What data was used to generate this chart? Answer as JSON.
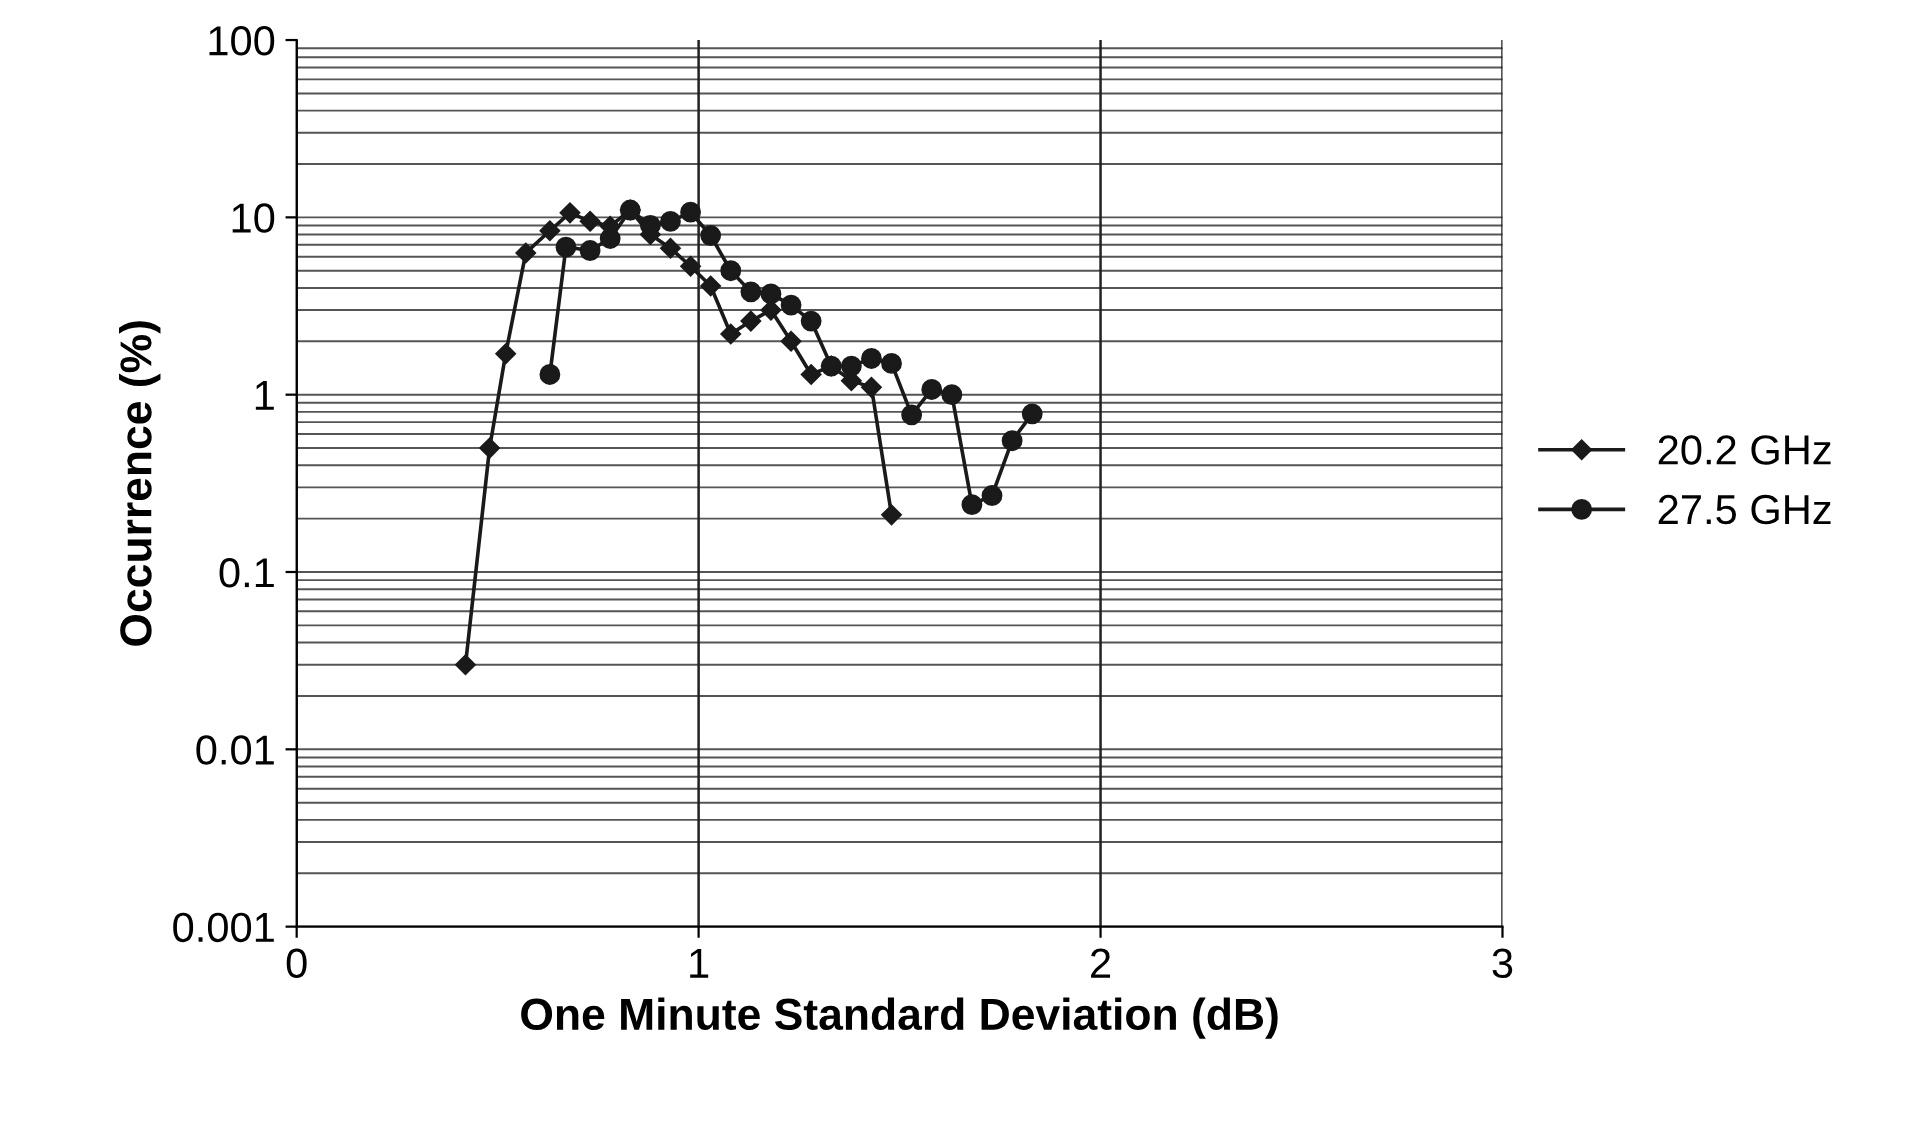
{
  "chart_data": {
    "type": "line",
    "xlabel": "One Minute Standard Deviation (dB)",
    "ylabel": "Occurrence (%)",
    "log": "y",
    "xlim": [
      0,
      3
    ],
    "xticks": [
      0,
      1,
      2,
      3
    ],
    "ylim": [
      0.001,
      100
    ],
    "yticks": [
      {
        "value": 0.001,
        "label": "0.001"
      },
      {
        "value": 0.01,
        "label": "0.01"
      },
      {
        "value": 0.1,
        "label": "0.1"
      },
      {
        "value": 1,
        "label": "1"
      },
      {
        "value": 10,
        "label": "10"
      },
      {
        "value": 100,
        "label": "100"
      }
    ],
    "grid": true,
    "legend": "right",
    "series": [
      {
        "name": "20.2 GHz",
        "color": "#1a1a1a",
        "marker": "diamond",
        "x": [
          0.42,
          0.48,
          0.52,
          0.57,
          0.63,
          0.68,
          0.73,
          0.78,
          0.83,
          0.88,
          0.93,
          0.98,
          1.03,
          1.08,
          1.13,
          1.18,
          1.23,
          1.28,
          1.33,
          1.38,
          1.43,
          1.48
        ],
        "values": [
          0.03,
          0.5,
          1.7,
          6.3,
          8.4,
          10.6,
          9.5,
          8.9,
          11,
          8,
          6.7,
          5.3,
          4.1,
          2.2,
          2.6,
          3.0,
          2.0,
          1.3,
          1.45,
          1.2,
          1.1,
          0.21
        ]
      },
      {
        "name": "27.5 GHz",
        "color": "#1a1a1a",
        "marker": "circle",
        "x": [
          0.63,
          0.67,
          0.73,
          0.78,
          0.83,
          0.88,
          0.93,
          0.98,
          1.03,
          1.08,
          1.13,
          1.18,
          1.23,
          1.28,
          1.33,
          1.38,
          1.43,
          1.48,
          1.53,
          1.58,
          1.63,
          1.68,
          1.73,
          1.78,
          1.83
        ],
        "values": [
          1.3,
          6.8,
          6.5,
          7.6,
          11,
          9,
          9.5,
          10.7,
          7.9,
          5.0,
          3.8,
          3.7,
          3.2,
          2.6,
          1.45,
          1.45,
          1.6,
          1.5,
          0.77,
          1.07,
          1.0,
          0.24,
          0.27,
          0.55,
          0.78
        ]
      }
    ]
  }
}
